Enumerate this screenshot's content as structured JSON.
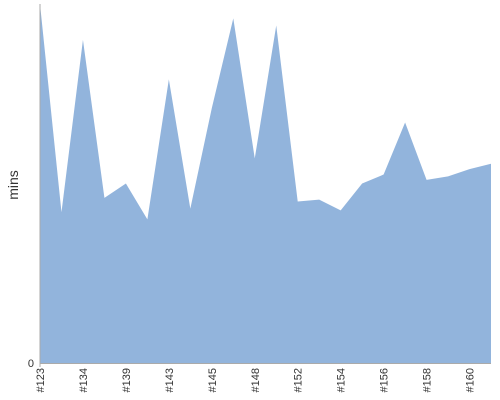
{
  "chart_data": {
    "type": "area",
    "title": "",
    "xlabel": "",
    "ylabel": "mins",
    "ylim": [
      0,
      100
    ],
    "y_tick_labels": [
      "0"
    ],
    "x": [
      "#123",
      "#133",
      "#134",
      "#136",
      "#139",
      "#140",
      "#143",
      "#144",
      "#145",
      "#146",
      "#148",
      "#150",
      "#152",
      "#153",
      "#154",
      "#155",
      "#156",
      "#157",
      "#158",
      "#159",
      "#160",
      "#161"
    ],
    "x_tick_labels": [
      "#123",
      "#134",
      "#139",
      "#143",
      "#145",
      "#148",
      "#152",
      "#154",
      "#156",
      "#158",
      "#160"
    ],
    "values": [
      100,
      42,
      90,
      46,
      50,
      40,
      79,
      43,
      71,
      96,
      57,
      94,
      45,
      45.5,
      42.5,
      50,
      52.5,
      67,
      51,
      52,
      54,
      55.5
    ],
    "grid": false,
    "series_color": "#92b4dc",
    "axis_color": "#aaaaaa"
  }
}
